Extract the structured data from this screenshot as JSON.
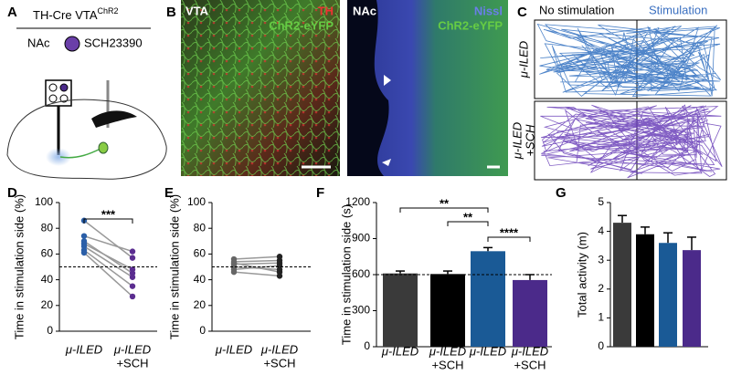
{
  "panels": {
    "a": {
      "label": "A",
      "title": "TH-Cre VTA",
      "title_sup": "ChR2",
      "region": "NAc",
      "drug": "SCH23390"
    },
    "b": {
      "label": "B",
      "left": {
        "region": "VTA",
        "stain1": "TH",
        "stain2": "ChR2-eYFP"
      },
      "right": {
        "region": "NAc",
        "stain1": "Nissl",
        "stain2": "ChR2-eYFP"
      }
    },
    "c": {
      "label": "C",
      "left_header": "No stimulation",
      "right_header": "Stimulation",
      "rows": [
        [
          "μ-ILED"
        ],
        [
          "μ-ILED",
          "+SCH"
        ]
      ]
    }
  },
  "chart_data": [
    {
      "type": "paired",
      "label": "D",
      "y_label": "Time in stimulation side (%)",
      "categories": [
        [
          "μ-ILED"
        ],
        [
          "μ-ILED",
          "+SCH"
        ]
      ],
      "colors": [
        "#2b5fa8",
        "#5b2d90"
      ],
      "line_color": "#999999",
      "series": [
        {
          "values": [
            86,
            57
          ]
        },
        {
          "values": [
            74,
            62
          ]
        },
        {
          "values": [
            70,
            45
          ]
        },
        {
          "values": [
            68,
            48
          ]
        },
        {
          "values": [
            66,
            42
          ]
        },
        {
          "values": [
            63,
            35
          ]
        },
        {
          "values": [
            61,
            27
          ]
        }
      ],
      "ylim": [
        0,
        100
      ],
      "yticks": [
        0,
        20,
        40,
        60,
        80,
        100
      ],
      "reference_line": 50,
      "annotations": [
        {
          "text": "***",
          "between": [
            0,
            1
          ]
        }
      ]
    },
    {
      "type": "paired",
      "label": "E",
      "y_label": "Time in stimulation side (%)",
      "categories": [
        [
          "μ-ILED"
        ],
        [
          "μ-ILED",
          "+SCH"
        ]
      ],
      "colors": [
        "#666666",
        "#222222"
      ],
      "line_color": "#999999",
      "series": [
        {
          "values": [
            56,
            58
          ]
        },
        {
          "values": [
            54,
            55
          ]
        },
        {
          "values": [
            53,
            46
          ]
        },
        {
          "values": [
            52,
            53
          ]
        },
        {
          "values": [
            50,
            48
          ]
        },
        {
          "values": [
            48,
            51
          ]
        },
        {
          "values": [
            46,
            43
          ]
        }
      ],
      "ylim": [
        0,
        100
      ],
      "yticks": [
        0,
        20,
        40,
        60,
        80,
        100
      ],
      "reference_line": 50,
      "annotations": []
    },
    {
      "type": "bar",
      "label": "F",
      "y_label": "Time in stimulation side (s)",
      "categories": [
        [
          "μ-ILED"
        ],
        [
          "μ-ILED",
          "+SCH"
        ],
        [
          "μ-ILED"
        ],
        [
          "μ-ILED",
          "+SCH"
        ]
      ],
      "values": [
        610,
        605,
        795,
        555
      ],
      "errors": [
        20,
        25,
        30,
        45
      ],
      "colors": [
        "#3a3a3a",
        "#000000",
        "#1a5a96",
        "#4b2a8a"
      ],
      "ylim": [
        0,
        1200
      ],
      "yticks": [
        0,
        300,
        600,
        900,
        1200
      ],
      "reference_line": 600,
      "annotations": [
        {
          "text": "**",
          "between": [
            0,
            2
          ]
        },
        {
          "text": "**",
          "between": [
            1,
            2
          ]
        },
        {
          "text": "****",
          "between": [
            2,
            3
          ]
        }
      ]
    },
    {
      "type": "bar",
      "label": "G",
      "y_label": "Total activity (m)",
      "values": [
        4.3,
        3.9,
        3.6,
        3.35
      ],
      "errors": [
        0.25,
        0.25,
        0.35,
        0.45
      ],
      "colors": [
        "#3a3a3a",
        "#000000",
        "#1a5a96",
        "#4b2a8a"
      ],
      "ylim": [
        0,
        5
      ],
      "yticks": [
        0,
        1,
        2,
        3,
        4,
        5
      ],
      "annotations": []
    }
  ]
}
